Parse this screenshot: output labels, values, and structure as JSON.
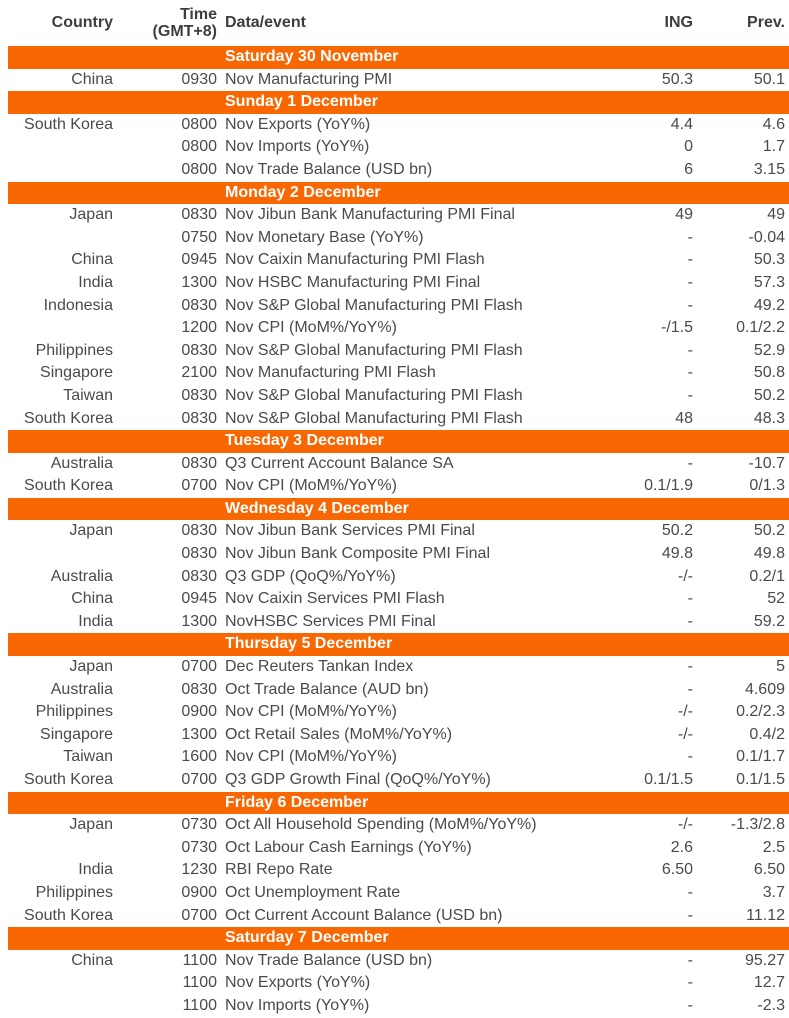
{
  "colors": {
    "accent_orange": "#f96702",
    "section_text": "#ffffff",
    "body_text": "#4a4a4a",
    "header_text": "#3d3d3d"
  },
  "header": {
    "country": "Country",
    "time": [
      "Time",
      "(GMT+8)"
    ],
    "event": "Data/event",
    "ing": "ING",
    "prev": "Prev."
  },
  "sections": [
    {
      "title": "Saturday 30 November",
      "rows": [
        {
          "country": "China",
          "time": "0930",
          "event": "Nov Manufacturing PMI",
          "ing": "50.3",
          "prev": "50.1"
        }
      ]
    },
    {
      "title": "Sunday 1 December",
      "rows": [
        {
          "country": "South Korea",
          "time": "0800",
          "event": "Nov Exports (YoY%)",
          "ing": "4.4",
          "prev": "4.6"
        },
        {
          "country": "",
          "time": "0800",
          "event": "Nov Imports (YoY%)",
          "ing": "0",
          "prev": "1.7"
        },
        {
          "country": "",
          "time": "0800",
          "event": "Nov Trade Balance (USD bn)",
          "ing": "6",
          "prev": "3.15"
        }
      ]
    },
    {
      "title": "Monday 2 December",
      "rows": [
        {
          "country": "Japan",
          "time": "0830",
          "event": "Nov Jibun Bank Manufacturing PMI Final",
          "ing": "49",
          "prev": "49"
        },
        {
          "country": "",
          "time": "0750",
          "event": "Nov Monetary Base (YoY%)",
          "ing": "-",
          "prev": "-0.04"
        },
        {
          "country": "China",
          "time": "0945",
          "event": "Nov Caixin Manufacturing PMI Flash",
          "ing": "-",
          "prev": "50.3"
        },
        {
          "country": "India",
          "time": "1300",
          "event": "Nov HSBC Manufacturing PMI Final",
          "ing": "-",
          "prev": "57.3"
        },
        {
          "country": "Indonesia",
          "time": "0830",
          "event": "Nov S&P Global Manufacturing PMI Flash",
          "ing": "-",
          "prev": "49.2"
        },
        {
          "country": "",
          "time": "1200",
          "event": "Nov CPI (MoM%/YoY%)",
          "ing": "-/1.5",
          "prev": "0.1/2.2"
        },
        {
          "country": "Philippines",
          "time": "0830",
          "event": "Nov S&P Global Manufacturing PMI Flash",
          "ing": "-",
          "prev": "52.9"
        },
        {
          "country": "Singapore",
          "time": "2100",
          "event": "Nov Manufacturing PMI Flash",
          "ing": "-",
          "prev": "50.8"
        },
        {
          "country": "Taiwan",
          "time": "0830",
          "event": "Nov S&P Global Manufacturing PMI Flash",
          "ing": "-",
          "prev": "50.2"
        },
        {
          "country": "South Korea",
          "time": "0830",
          "event": "Nov S&P Global Manufacturing PMI Flash",
          "ing": "48",
          "prev": "48.3"
        }
      ]
    },
    {
      "title": "Tuesday 3 December",
      "rows": [
        {
          "country": "Australia",
          "time": "0830",
          "event": "Q3 Current Account Balance SA",
          "ing": "-",
          "prev": "-10.7"
        },
        {
          "country": "South Korea",
          "time": "0700",
          "event": "Nov CPI (MoM%/YoY%)",
          "ing": "0.1/1.9",
          "prev": "0/1.3"
        }
      ]
    },
    {
      "title": "Wednesday 4 December",
      "rows": [
        {
          "country": "Japan",
          "time": "0830",
          "event": "Nov Jibun Bank Services PMI Final",
          "ing": "50.2",
          "prev": "50.2"
        },
        {
          "country": "",
          "time": "0830",
          "event": "Nov Jibun Bank Composite PMI Final",
          "ing": "49.8",
          "prev": "49.8"
        },
        {
          "country": "Australia",
          "time": "0830",
          "event": "Q3 GDP (QoQ%/YoY%)",
          "ing": "-/-",
          "prev": "0.2/1"
        },
        {
          "country": "China",
          "time": "0945",
          "event": "Nov Caixin Services PMI Flash",
          "ing": "-",
          "prev": "52"
        },
        {
          "country": "India",
          "time": "1300",
          "event": "NovHSBC Services PMI Final",
          "ing": "-",
          "prev": "59.2"
        }
      ]
    },
    {
      "title": "Thursday 5 December",
      "rows": [
        {
          "country": "Japan",
          "time": "0700",
          "event": "Dec Reuters Tankan Index",
          "ing": "-",
          "prev": "5"
        },
        {
          "country": "Australia",
          "time": "0830",
          "event": "Oct Trade Balance (AUD bn)",
          "ing": "-",
          "prev": "4.609"
        },
        {
          "country": "Philippines",
          "time": "0900",
          "event": "Nov CPI (MoM%/YoY%)",
          "ing": "-/-",
          "prev": "0.2/2.3"
        },
        {
          "country": "Singapore",
          "time": "1300",
          "event": "Oct Retail Sales (MoM%/YoY%)",
          "ing": "-/-",
          "prev": "0.4/2"
        },
        {
          "country": "Taiwan",
          "time": "1600",
          "event": "Nov CPI (MoM%/YoY%)",
          "ing": "-",
          "prev": "0.1/1.7"
        },
        {
          "country": "South Korea",
          "time": "0700",
          "event": "Q3 GDP Growth Final (QoQ%/YoY%)",
          "ing": "0.1/1.5",
          "prev": "0.1/1.5"
        }
      ]
    },
    {
      "title": "Friday 6 December",
      "rows": [
        {
          "country": "Japan",
          "time": "0730",
          "event": "Oct All Household Spending (MoM%/YoY%)",
          "ing": "-/-",
          "prev": "-1.3/2.8"
        },
        {
          "country": "",
          "time": "0730",
          "event": "Oct Labour Cash Earnings (YoY%)",
          "ing": "2.6",
          "prev": "2.5"
        },
        {
          "country": "India",
          "time": "1230",
          "event": "RBI Repo Rate",
          "ing": "6.50",
          "prev": "6.50"
        },
        {
          "country": "Philippines",
          "time": "0900",
          "event": "Oct Unemployment Rate",
          "ing": "-",
          "prev": "3.7"
        },
        {
          "country": "South Korea",
          "time": "0700",
          "event": "Oct Current Account Balance (USD bn)",
          "ing": "-",
          "prev": "11.12"
        }
      ]
    },
    {
      "title": "Saturday 7 December",
      "rows": [
        {
          "country": "China",
          "time": "1100",
          "event": "Nov Trade Balance (USD bn)",
          "ing": "-",
          "prev": "95.27"
        },
        {
          "country": "",
          "time": "1100",
          "event": "Nov Exports (YoY%)",
          "ing": "-",
          "prev": "12.7"
        },
        {
          "country": "",
          "time": "1100",
          "event": "Nov Imports (YoY%)",
          "ing": "-",
          "prev": "-2.3"
        }
      ]
    }
  ]
}
